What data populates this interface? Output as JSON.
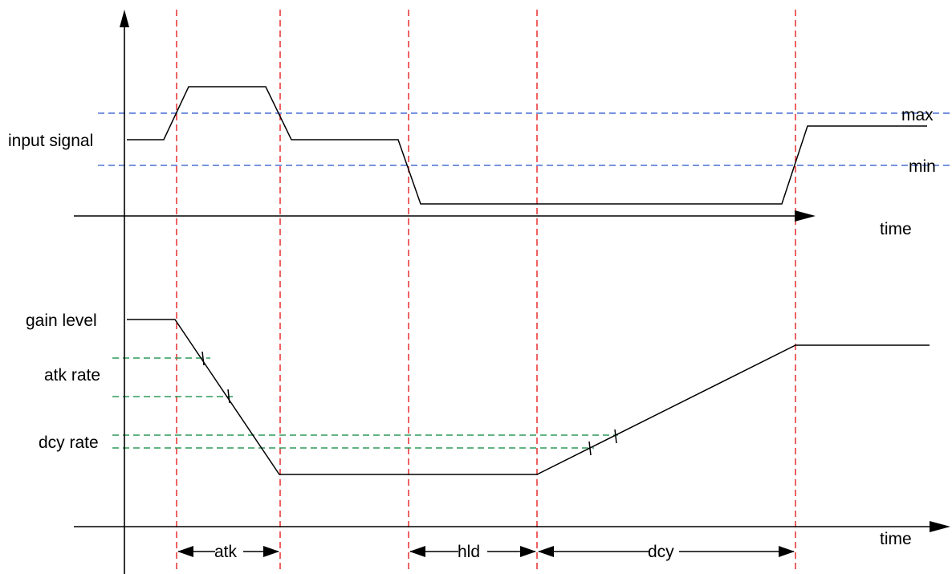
{
  "labels": {
    "input_signal": "input signal",
    "max": "max",
    "min": "min",
    "time_top": "time",
    "gain_level": "gain level",
    "atk_rate": "atk rate",
    "dcy_rate": "dcy rate",
    "time_bottom": "time",
    "atk": "atk",
    "hld": "hld",
    "dcy": "dcy"
  },
  "colors": {
    "phase_markers": "#e51f1f",
    "thresholds": "#4a6fd3",
    "rate_guides": "#2e9a5a",
    "signal": "#000000"
  }
}
